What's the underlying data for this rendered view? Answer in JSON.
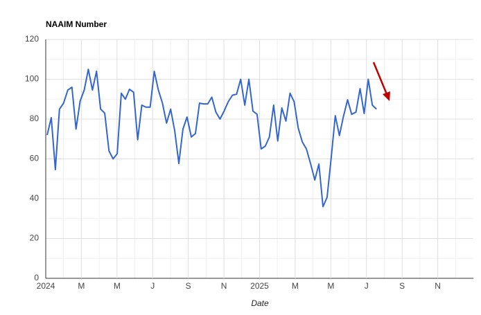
{
  "chart_data": {
    "type": "line",
    "title": "NAAIM Number",
    "x_label": "Date",
    "x": [
      0.08,
      0.31,
      0.54,
      0.77,
      1.0,
      1.24,
      1.47,
      1.7,
      1.93,
      2.16,
      2.39,
      2.62,
      2.85,
      3.08,
      3.31,
      3.55,
      3.78,
      4.01,
      4.24,
      4.47,
      4.7,
      4.93,
      5.16,
      5.39,
      5.62,
      5.86,
      6.09,
      6.32,
      6.55,
      6.78,
      7.01,
      7.24,
      7.47,
      7.7,
      7.93,
      8.17,
      8.4,
      8.63,
      8.86,
      9.09,
      9.32,
      9.55,
      9.78,
      10.01,
      10.24,
      10.48,
      10.71,
      10.94,
      11.17,
      11.4,
      11.63,
      11.86,
      12.09,
      12.32,
      12.55,
      12.79,
      13.02,
      13.25,
      13.48,
      13.71,
      13.94,
      14.17,
      14.4,
      14.63,
      14.86,
      15.1,
      15.33,
      15.56,
      15.79,
      16.02,
      16.25,
      16.48,
      16.71,
      16.94,
      17.17,
      17.41,
      17.64,
      17.87,
      18.1,
      18.33,
      18.56
    ],
    "series": [
      {
        "color": "#3366cc",
        "values": [
          72,
          80.7,
          54.6,
          85,
          88,
          94.6,
          96,
          75,
          89,
          94.6,
          105,
          94.6,
          104,
          85,
          83,
          64,
          60,
          62.6,
          93,
          90,
          95,
          93.5,
          69.6,
          87,
          86,
          86,
          104,
          94.6,
          88,
          78,
          85,
          74,
          57.7,
          75,
          81,
          71,
          72.7,
          88,
          87.6,
          87.6,
          91,
          83.5,
          80,
          84,
          88.7,
          92,
          92.5,
          100,
          87,
          100,
          84,
          82.4,
          65,
          66.4,
          71,
          87,
          69,
          85.6,
          79,
          93,
          88.7,
          75.5,
          68.5,
          65,
          57.7,
          49.4,
          57.4,
          36,
          40.7,
          60.5,
          81.7,
          71.7,
          81.4,
          89.7,
          82.4,
          83.5,
          95.3,
          82.8,
          100,
          87,
          85
        ]
      }
    ],
    "xlim": [
      0,
      24
    ],
    "xticks": [
      {
        "value": 0,
        "label": "2024"
      },
      {
        "value": 2,
        "label": "M"
      },
      {
        "value": 4,
        "label": "M"
      },
      {
        "value": 6,
        "label": "J"
      },
      {
        "value": 8,
        "label": "S"
      },
      {
        "value": 10,
        "label": "N"
      },
      {
        "value": 12,
        "label": "2025"
      },
      {
        "value": 14,
        "label": "M"
      },
      {
        "value": 16,
        "label": "M"
      },
      {
        "value": 18,
        "label": "J"
      },
      {
        "value": 20,
        "label": "S"
      },
      {
        "value": 22,
        "label": "N"
      }
    ],
    "ylim": [
      0,
      120
    ],
    "yticks": [
      0,
      20,
      40,
      60,
      80,
      100,
      120
    ],
    "grid": true,
    "minor_grid": true
  }
}
